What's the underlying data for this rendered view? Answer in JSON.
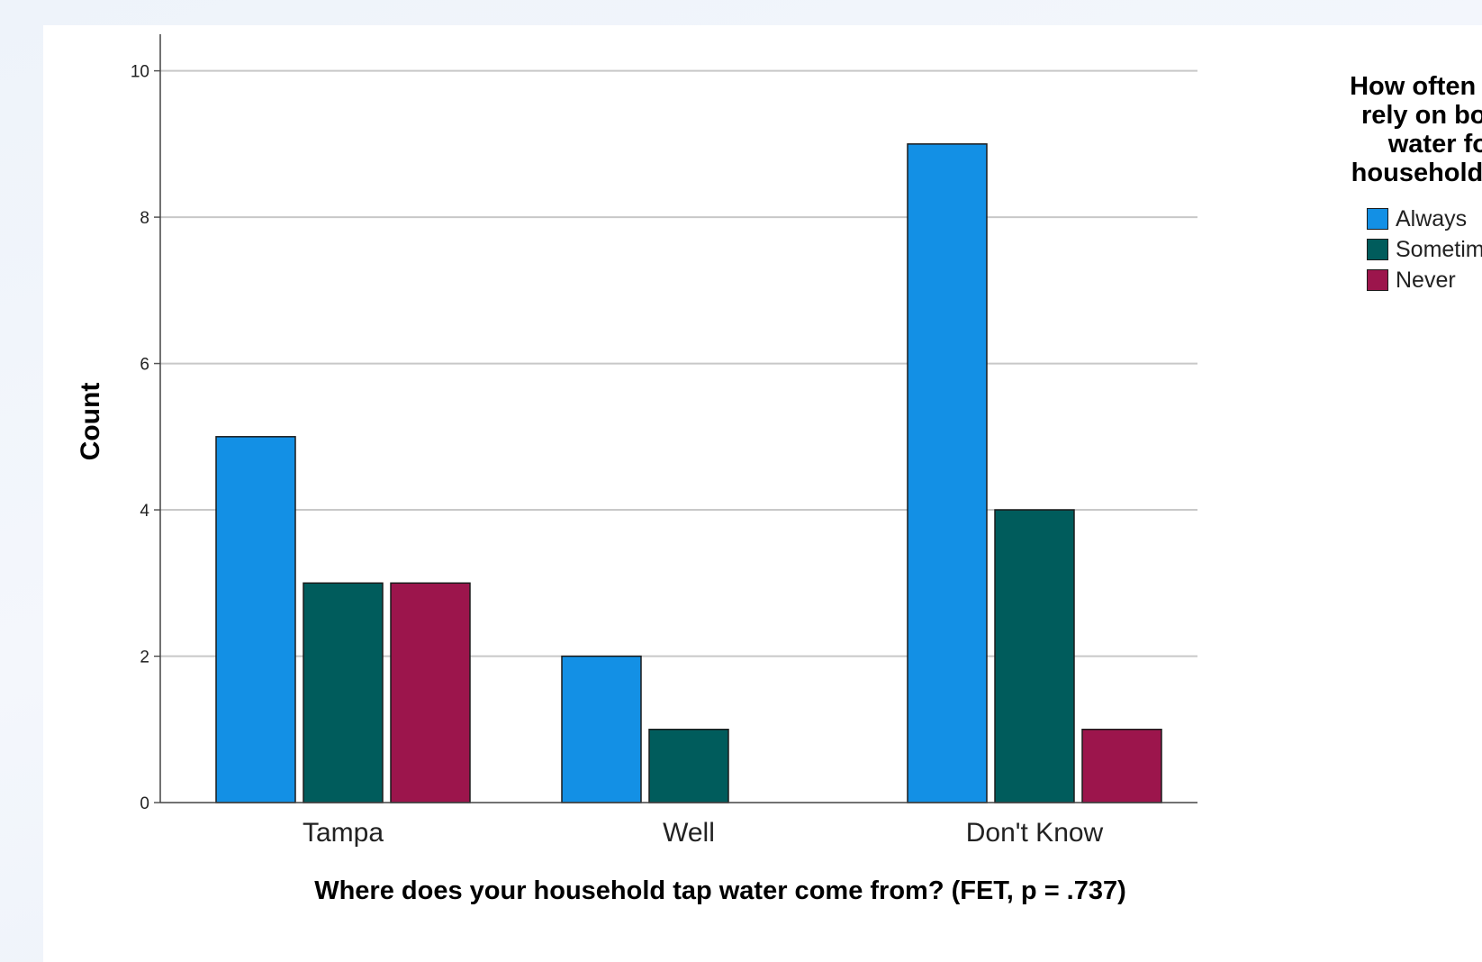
{
  "chart_data": {
    "type": "bar",
    "categories": [
      "Tampa",
      "Well",
      "Don't Know"
    ],
    "series": [
      {
        "name": "Always",
        "color": "#1390e5",
        "values": [
          5,
          2,
          9
        ]
      },
      {
        "name": "Sometimes",
        "color": "#005c5c",
        "values": [
          3,
          1,
          4
        ]
      },
      {
        "name": "Never",
        "color": "#9c154c",
        "values": [
          3,
          0,
          1
        ]
      }
    ],
    "title": "",
    "xlabel": "Where does your household tap water come from? (FET, p = .737)",
    "ylabel": "Count",
    "ylim": [
      0,
      10.5
    ],
    "yticks": [
      0,
      2,
      4,
      6,
      8,
      10
    ],
    "grid": true,
    "legend": {
      "title_lines": [
        "How often do y",
        "rely on bottle",
        "water for",
        "household nee"
      ],
      "position": "right"
    }
  }
}
